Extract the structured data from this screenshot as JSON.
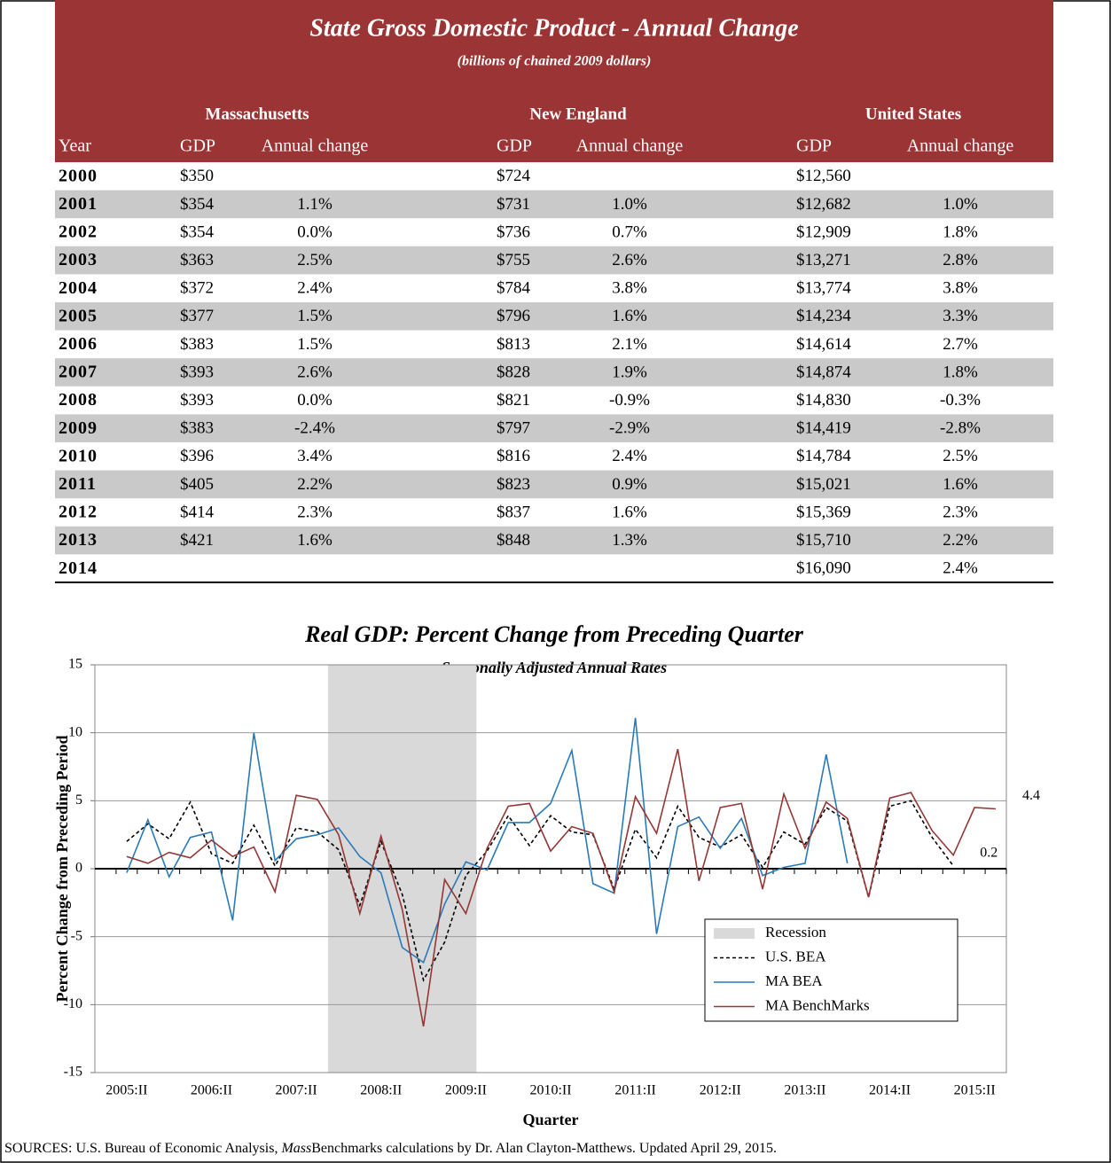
{
  "table": {
    "title": "State Gross Domestic Product - Annual Change",
    "subtitle": "(billions of chained 2009 dollars)",
    "groups": [
      "Massachusetts",
      "New England",
      "United States"
    ],
    "columns": [
      "Year",
      "GDP",
      "Annual change",
      "GDP",
      "Annual change",
      "GDP",
      "Annual change"
    ],
    "rows": [
      [
        "2000",
        "$350",
        null,
        "$724",
        null,
        "$12,560",
        null
      ],
      [
        "2001",
        "$354",
        "1.1%",
        "$731",
        "1.0%",
        "$12,682",
        "1.0%"
      ],
      [
        "2002",
        "$354",
        "0.0%",
        "$736",
        "0.7%",
        "$12,909",
        "1.8%"
      ],
      [
        "2003",
        "$363",
        "2.5%",
        "$755",
        "2.6%",
        "$13,271",
        "2.8%"
      ],
      [
        "2004",
        "$372",
        "2.4%",
        "$784",
        "3.8%",
        "$13,774",
        "3.8%"
      ],
      [
        "2005",
        "$377",
        "1.5%",
        "$796",
        "1.6%",
        "$14,234",
        "3.3%"
      ],
      [
        "2006",
        "$383",
        "1.5%",
        "$813",
        "2.1%",
        "$14,614",
        "2.7%"
      ],
      [
        "2007",
        "$393",
        "2.6%",
        "$828",
        "1.9%",
        "$14,874",
        "1.8%"
      ],
      [
        "2008",
        "$393",
        "0.0%",
        "$821",
        "-0.9%",
        "$14,830",
        "-0.3%"
      ],
      [
        "2009",
        "$383",
        "-2.4%",
        "$797",
        "-2.9%",
        "$14,419",
        "-2.8%"
      ],
      [
        "2010",
        "$396",
        "3.4%",
        "$816",
        "2.4%",
        "$14,784",
        "2.5%"
      ],
      [
        "2011",
        "$405",
        "2.2%",
        "$823",
        "0.9%",
        "$15,021",
        "1.6%"
      ],
      [
        "2012",
        "$414",
        "2.3%",
        "$837",
        "1.6%",
        "$15,369",
        "2.3%"
      ],
      [
        "2013",
        "$421",
        "1.6%",
        "$848",
        "1.3%",
        "$15,710",
        "2.2%"
      ],
      [
        "2014",
        null,
        null,
        null,
        null,
        "$16,090",
        "2.4%"
      ]
    ]
  },
  "chart_data": {
    "type": "line",
    "title": "Real GDP: Percent Change from Preceding Quarter",
    "subtitle": "Seasonally Adjusted Annual Rates",
    "x_label": "Quarter",
    "y_label": "Percent Change from Preceding Period",
    "categories": [
      null,
      "2005:II",
      null,
      null,
      null,
      "2006:II",
      null,
      null,
      null,
      "2007:II",
      null,
      null,
      null,
      "2008:II",
      null,
      null,
      null,
      "2009:II",
      null,
      null,
      null,
      "2010:II",
      null,
      null,
      null,
      "2011:II",
      null,
      null,
      null,
      "2012:II",
      null,
      null,
      null,
      "2013:II",
      null,
      null,
      null,
      "2014:II",
      null,
      null,
      null,
      "2015:II",
      null
    ],
    "ylim": [
      -15,
      15
    ],
    "yticks": [
      -15,
      -10,
      -5,
      0,
      5,
      10,
      15
    ],
    "grid": true,
    "bands": [
      {
        "name": "Recession",
        "from": 11,
        "to": 17,
        "color": "#d9d9d9"
      }
    ],
    "series": [
      {
        "name": "U.S. BEA",
        "color": "#000000",
        "dashed": true,
        "show_last_label": true,
        "values": [
          null,
          2.0,
          3.3,
          2.2,
          4.9,
          1.1,
          0.4,
          3.2,
          0.2,
          3.0,
          2.7,
          1.4,
          -2.7,
          2.0,
          -1.9,
          -8.2,
          -5.4,
          -0.5,
          1.3,
          3.9,
          1.7,
          3.9,
          2.7,
          2.5,
          -1.5,
          2.9,
          0.8,
          4.6,
          2.3,
          1.6,
          2.5,
          0.1,
          2.7,
          1.8,
          4.5,
          3.5,
          -2.1,
          4.6,
          5.0,
          2.3,
          0.2,
          null,
          null
        ]
      },
      {
        "name": "MA BEA",
        "color": "#2a7ab8",
        "dashed": false,
        "show_last_label": false,
        "values": [
          null,
          -0.3,
          3.6,
          -0.6,
          2.3,
          2.7,
          -3.8,
          10.0,
          0.6,
          2.2,
          2.5,
          3.0,
          0.9,
          -0.3,
          -5.8,
          -6.9,
          -2.6,
          0.5,
          -0.1,
          3.4,
          3.4,
          4.8,
          8.7,
          -1.1,
          -1.8,
          11.1,
          -4.8,
          3.1,
          3.8,
          1.5,
          3.7,
          -0.5,
          0.1,
          0.4,
          8.4,
          0.4,
          null,
          null,
          null,
          null,
          null,
          null,
          null
        ]
      },
      {
        "name": "MA BenchMarks",
        "color": "#953735",
        "dashed": false,
        "show_last_label": true,
        "values": [
          null,
          0.9,
          0.4,
          1.2,
          0.8,
          2.1,
          0.9,
          1.6,
          -1.7,
          5.4,
          5.1,
          2.5,
          -3.3,
          2.4,
          -3.0,
          -11.6,
          -0.8,
          -3.3,
          1.5,
          4.6,
          4.8,
          1.3,
          3.1,
          2.6,
          -1.7,
          5.3,
          2.6,
          8.8,
          -0.9,
          4.5,
          4.8,
          -1.5,
          5.5,
          1.5,
          4.9,
          3.7,
          -2.1,
          5.2,
          5.6,
          2.8,
          1.0,
          4.5,
          4.4
        ]
      }
    ]
  },
  "sources": [
    "SOURCES: U.S. Bureau of Economic Analysis, ",
    "Mass",
    "Benchmarks calculations by Dr. Alan Clayton-Matthews. Updated April 29, 2015."
  ]
}
